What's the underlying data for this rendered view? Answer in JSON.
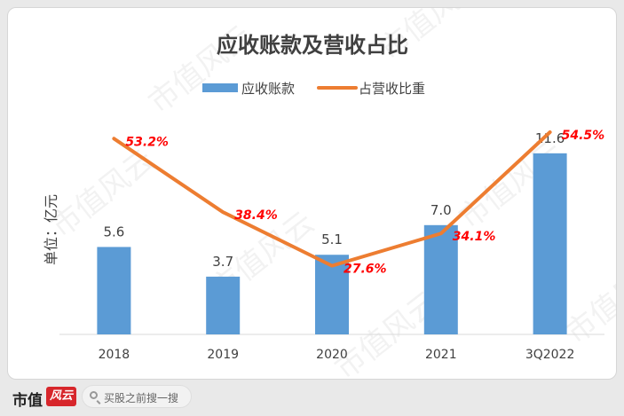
{
  "chart_data": {
    "type": "bar",
    "title": "应收账款及营收占比",
    "ylabel": "单位：亿元",
    "categories": [
      "2018",
      "2019",
      "2020",
      "2021",
      "3Q2022"
    ],
    "series": [
      {
        "name": "应收账款",
        "kind": "bar",
        "values": [
          5.6,
          3.7,
          5.1,
          7.0,
          11.6
        ],
        "labels": [
          "5.6",
          "3.7",
          "5.1",
          "7.0",
          "11.6"
        ],
        "color": "#5b9bd5"
      },
      {
        "name": "占营收比重",
        "kind": "line",
        "values": [
          53.2,
          38.4,
          27.6,
          34.1,
          54.5
        ],
        "labels": [
          "53.2%",
          "38.4%",
          "27.6%",
          "34.1%",
          "54.5%"
        ],
        "color": "#ed7d31"
      }
    ],
    "legend_position": "top-center",
    "grid": false,
    "line_label_color": "#ff0000"
  },
  "footer": {
    "brand": "市值",
    "brand_mark": "风云",
    "search_placeholder": "买股之前搜一搜"
  },
  "watermark": "市值风云"
}
